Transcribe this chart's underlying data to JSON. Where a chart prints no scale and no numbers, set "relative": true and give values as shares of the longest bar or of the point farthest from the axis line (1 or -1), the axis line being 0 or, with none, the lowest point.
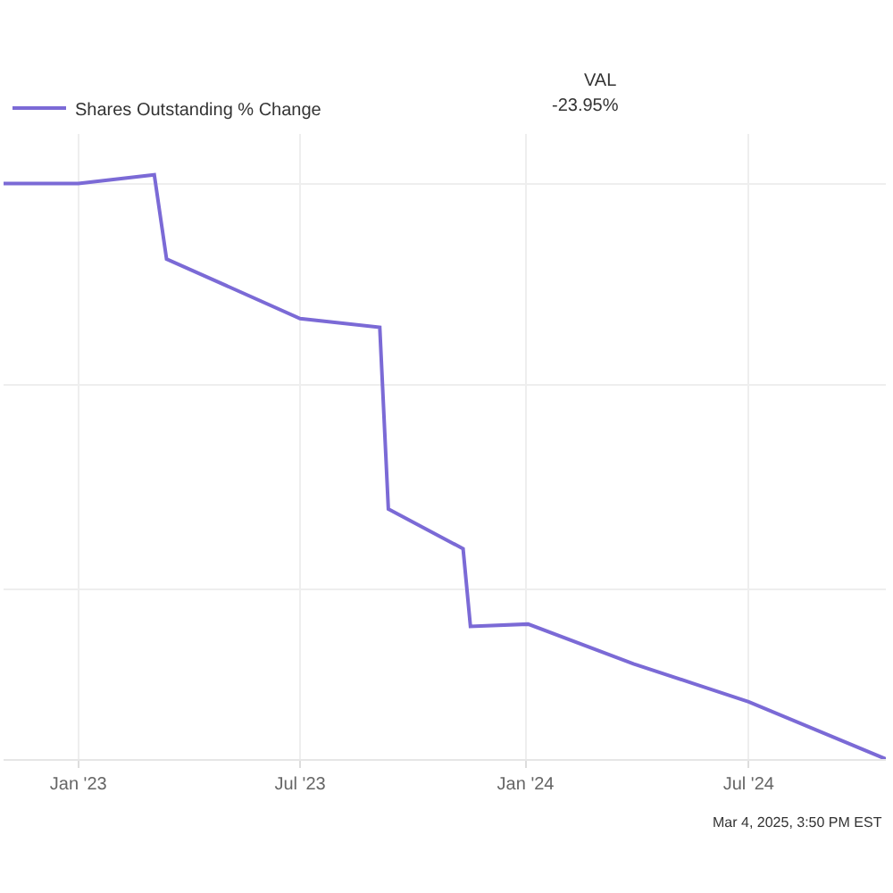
{
  "chart_data": {
    "type": "line",
    "relative": true,
    "x": [
      "2022-11-01",
      "2023-01-01",
      "2023-03-04",
      "2023-03-14",
      "2023-07-01",
      "2023-09-04",
      "2023-09-11",
      "2023-11-11",
      "2023-11-17",
      "2024-01-03",
      "2024-03-29",
      "2024-07-01",
      "2024-10-21"
    ],
    "series": [
      {
        "name": "Shares Outstanding % Change",
        "color": "#7b6ad6",
        "values": [
          0.985,
          0.985,
          1,
          0.856,
          0.754,
          0.739,
          0.428,
          0.36,
          0.227,
          0.231,
          0.163,
          0.098,
          0
        ]
      }
    ],
    "xlim": [
      "2022-11-01",
      "2024-10-21"
    ],
    "xticks": [
      {
        "value": "2023-01-01",
        "label": "Jan '23"
      },
      {
        "value": "2023-07-01",
        "label": "Jul '23"
      },
      {
        "value": "2024-01-01",
        "label": "Jan '24"
      },
      {
        "value": "2024-07-01",
        "label": "Jul '24"
      }
    ],
    "grid": true,
    "legend": "top left",
    "marker": "none",
    "line_style": "solid",
    "annotations": [
      "VAL",
      "-23.95%",
      "Mar 4, 2025, 3:50 PM EST"
    ]
  }
}
